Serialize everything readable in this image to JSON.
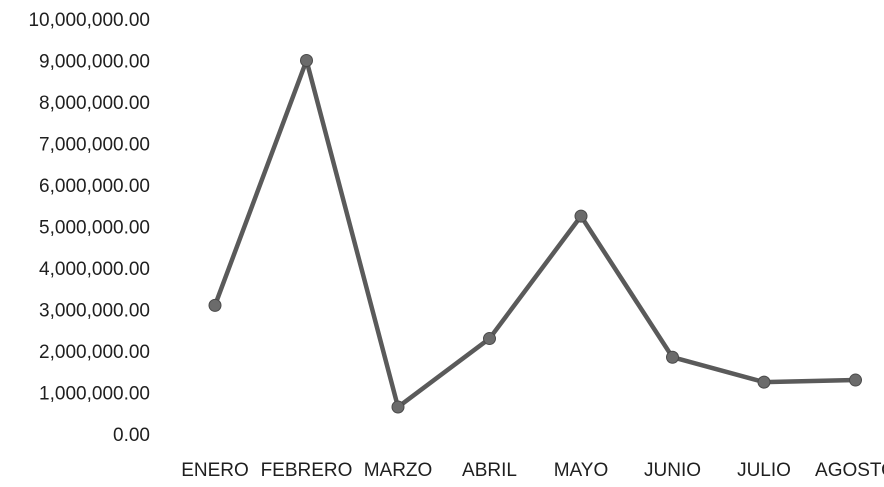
{
  "chart_data": {
    "type": "line",
    "title": "",
    "xlabel": "",
    "ylabel": "",
    "categories": [
      "ENERO",
      "FEBRERO",
      "MARZO",
      "ABRIL",
      "MAYO",
      "JUNIO",
      "JULIO",
      "AGOSTO"
    ],
    "values": [
      3100000,
      9000000,
      650000,
      2300000,
      5250000,
      1850000,
      1250000,
      1300000
    ],
    "ylim": [
      0,
      10000000
    ],
    "y_ticks": [
      "0.00",
      "1,000,000.00",
      "2,000,000.00",
      "3,000,000.00",
      "4,000,000.00",
      "5,000,000.00",
      "6,000,000.00",
      "7,000,000.00",
      "8,000,000.00",
      "9,000,000.00",
      "10,000,000.00"
    ],
    "grid": false,
    "legend": "none",
    "line_color": "#5a5a5a",
    "marker_color": "#6b6b6b"
  }
}
